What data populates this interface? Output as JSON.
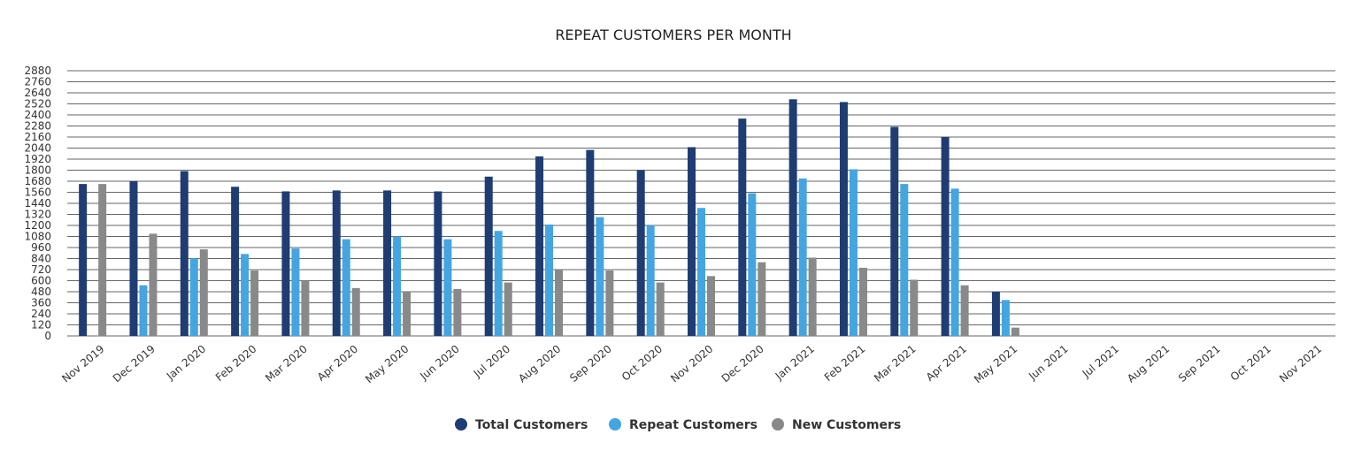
{
  "chart_data": {
    "type": "bar",
    "title": "REPEAT CUSTOMERS PER MONTH",
    "xlabel": "",
    "ylabel": "",
    "ylim": [
      0,
      2880
    ],
    "yticks": [
      0,
      120,
      240,
      360,
      480,
      600,
      720,
      840,
      960,
      1080,
      1200,
      1320,
      1440,
      1560,
      1680,
      1800,
      1920,
      2040,
      2160,
      2280,
      2400,
      2520,
      2640,
      2760,
      2880
    ],
    "grid": true,
    "legend_position": "bottom-center",
    "categories": [
      "Nov 2019",
      "Dec 2019",
      "Jan 2020",
      "Feb 2020",
      "Mar 2020",
      "Apr 2020",
      "May 2020",
      "Jun 2020",
      "Jul 2020",
      "Aug 2020",
      "Sep 2020",
      "Oct 2020",
      "Nov 2020",
      "Dec 2020",
      "Jan 2021",
      "Feb 2021",
      "Mar 2021",
      "Apr 2021",
      "May 2021",
      "Jun 2021",
      "Jul 2021",
      "Aug 2021",
      "Sep 2021",
      "Oct 2021",
      "Nov 2021"
    ],
    "series": [
      {
        "name": "Total Customers",
        "color": "#1f3d73",
        "values": [
          1650,
          1680,
          1790,
          1620,
          1570,
          1580,
          1580,
          1570,
          1730,
          1950,
          2020,
          1800,
          2050,
          2360,
          2570,
          2540,
          2270,
          2160,
          480,
          null,
          null,
          null,
          null,
          null,
          null
        ]
      },
      {
        "name": "Repeat Customers",
        "color": "#45a5e0",
        "values": [
          null,
          550,
          840,
          890,
          950,
          1050,
          1080,
          1050,
          1140,
          1210,
          1290,
          1200,
          1390,
          1550,
          1710,
          1810,
          1650,
          1600,
          390,
          null,
          null,
          null,
          null,
          null,
          null
        ]
      },
      {
        "name": "New Customers",
        "color": "#898989",
        "values": [
          1650,
          1110,
          940,
          710,
          600,
          520,
          480,
          510,
          580,
          720,
          710,
          580,
          650,
          800,
          850,
          740,
          610,
          550,
          90,
          null,
          null,
          null,
          null,
          null,
          null
        ]
      }
    ]
  }
}
